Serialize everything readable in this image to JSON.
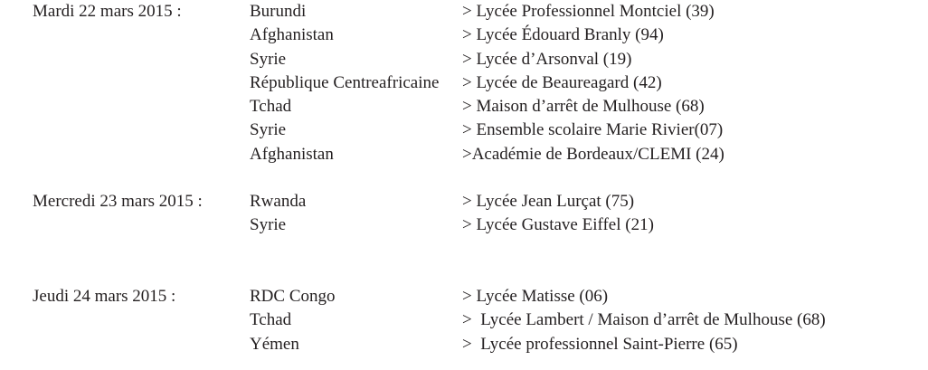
{
  "page": {
    "background": "#ffffff",
    "text_color": "#231f20"
  },
  "schedule": {
    "blocks": [
      {
        "date": "Mardi 22 mars 2015 :",
        "rows": [
          {
            "country": "Burundi",
            "school": "> Lycée Professionnel Montciel (39)"
          },
          {
            "country": "Afghanistan",
            "school": "> Lycée Édouard Branly (94)"
          },
          {
            "country": "Syrie",
            "school": "> Lycée d’Arsonval (19)"
          },
          {
            "country": "République Centreafricaine",
            "school": "> Lycée de Beaureagard (42)"
          },
          {
            "country": "Tchad",
            "school": "> Maison d’arrêt de Mulhouse (68)"
          },
          {
            "country": "Syrie",
            "school": "> Ensemble scolaire Marie Rivier(07)"
          },
          {
            "country": "Afghanistan",
            "school": ">Académie de Bordeaux/CLEMI (24)"
          }
        ]
      },
      {
        "date": "Mercredi 23 mars 2015 :",
        "rows": [
          {
            "country": "Rwanda",
            "school": "> Lycée Jean Lurçat (75)"
          },
          {
            "country": "Syrie",
            "school": "> Lycée Gustave Eiffel (21)"
          }
        ]
      },
      {
        "date": "Jeudi 24 mars 2015 :",
        "rows": [
          {
            "country": "RDC Congo",
            "school": "> Lycée Matisse (06)"
          },
          {
            "country": "Tchad",
            "school": ">  Lycée Lambert / Maison d’arrêt de Mulhouse (68)"
          },
          {
            "country": "Yémen",
            "school": ">  Lycée professionnel Saint-Pierre (65)"
          }
        ]
      }
    ]
  }
}
